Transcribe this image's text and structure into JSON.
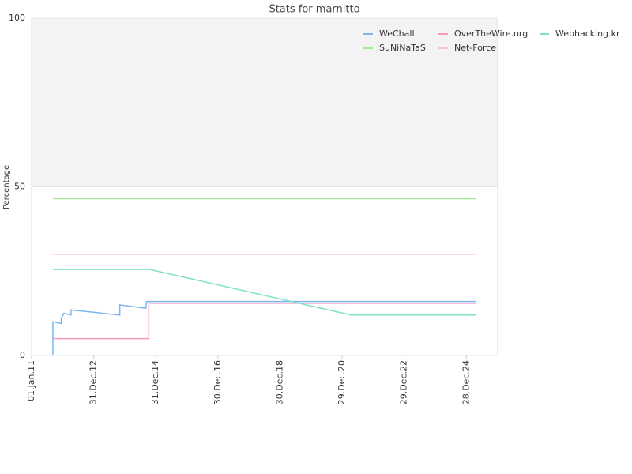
{
  "chart_data": {
    "type": "line",
    "title": "Stats for marnitto",
    "ylabel": "Percentage",
    "xlim": [
      "2011-01-01",
      "2026-01-01"
    ],
    "xticks": [
      {
        "value": "2011-01-01",
        "label": "01.Jan.11"
      },
      {
        "value": "2012-12-31",
        "label": "31.Dec.12"
      },
      {
        "value": "2014-12-31",
        "label": "31.Dec.14"
      },
      {
        "value": "2016-12-30",
        "label": "30.Dec.16"
      },
      {
        "value": "2018-12-30",
        "label": "30.Dec.18"
      },
      {
        "value": "2020-12-29",
        "label": "29.Dec.20"
      },
      {
        "value": "2022-12-29",
        "label": "29.Dec.22"
      },
      {
        "value": "2024-12-28",
        "label": "28.Dec.24"
      }
    ],
    "ylim": [
      0,
      100
    ],
    "yticks": [
      0,
      50,
      100
    ],
    "series": [
      {
        "name": "WeChall",
        "color": "#7cb5ec",
        "x": [
          "2011-09-08",
          "2011-09-08",
          "2011-12-16",
          "2011-12-16",
          "2012-01-15",
          "2012-04-08",
          "2012-04-08",
          "2013-11-03",
          "2013-11-03",
          "2014-09-05",
          "2014-09-14",
          "2025-04-22"
        ],
        "values": [
          0,
          10,
          9.5,
          11,
          12.5,
          12,
          13.5,
          12,
          15,
          14,
          16,
          16
        ]
      },
      {
        "name": "OverTheWire.org",
        "color": "#f39ac0",
        "x": [
          "2011-09-08",
          "2014-10-10",
          "2014-10-10",
          "2025-04-22"
        ],
        "values": [
          5,
          5,
          15.5,
          15.5
        ]
      },
      {
        "name": "Webhacking.kr",
        "color": "#7fe0c8",
        "x": [
          "2011-09-08",
          "2014-10-23",
          "2021-04-12",
          "2025-04-22"
        ],
        "values": [
          25.5,
          25.5,
          12,
          12
        ]
      },
      {
        "name": "SuNiNaTaS",
        "color": "#a6e89a",
        "x": [
          "2011-09-08",
          "2025-04-22"
        ],
        "values": [
          46.5,
          46.5
        ]
      },
      {
        "name": "Net-Force",
        "color": "#f7c5cf",
        "x": [
          "2011-09-08",
          "2025-04-22"
        ],
        "values": [
          30,
          30
        ]
      }
    ]
  }
}
